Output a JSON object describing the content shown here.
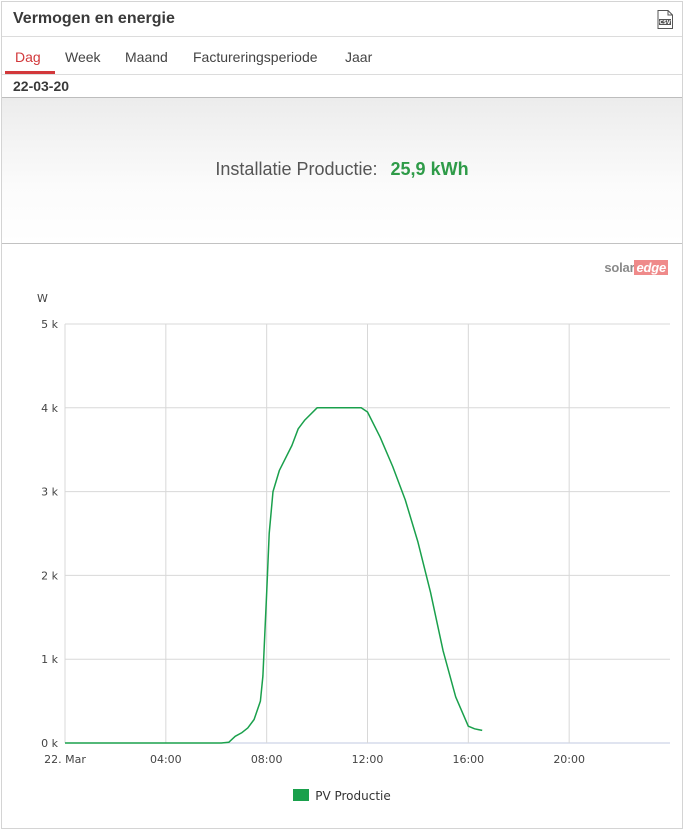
{
  "widget": {
    "title": "Vermogen en energie",
    "csv_icon": "csv-file-icon"
  },
  "tabs": [
    {
      "label": "Dag",
      "active": true
    },
    {
      "label": "Week",
      "active": false
    },
    {
      "label": "Maand",
      "active": false
    },
    {
      "label": "Factureringsperiode",
      "active": false
    },
    {
      "label": "Jaar",
      "active": false
    }
  ],
  "date": "22-03-20",
  "summary": {
    "label": "Installatie Productie:",
    "value": "25,9 kWh"
  },
  "logo": {
    "part1": "solar",
    "part2": "edge"
  },
  "colors": {
    "accent": "#d2383b",
    "value_green": "#2e9b48",
    "series": "#1aa04c",
    "grid": "#d8d8d8"
  },
  "chart_data": {
    "type": "line",
    "ylabel": "W",
    "ylim": [
      0,
      5000
    ],
    "yticks": [
      0,
      1000,
      2000,
      3000,
      4000,
      5000
    ],
    "ytick_labels": [
      "0 k",
      "1 k",
      "2 k",
      "3 k",
      "4 k",
      "5 k"
    ],
    "xlim": [
      0,
      24
    ],
    "xticks": [
      0,
      4,
      8,
      12,
      16,
      20
    ],
    "xtick_labels": [
      "22. Mar",
      "04:00",
      "08:00",
      "12:00",
      "16:00",
      "20:00"
    ],
    "grid": true,
    "legend": "bottom-center",
    "series": [
      {
        "name": "PV Productie",
        "x": [
          0,
          6.2,
          6.5,
          6.75,
          7.0,
          7.25,
          7.5,
          7.75,
          7.85,
          8.0,
          8.1,
          8.25,
          8.5,
          9.0,
          9.25,
          9.5,
          10.0,
          10.5,
          11.0,
          11.5,
          11.75,
          12.0,
          12.5,
          13.0,
          13.5,
          14.0,
          14.5,
          15.0,
          15.5,
          16.0,
          16.25,
          16.4,
          16.55
        ],
        "y": [
          0,
          0,
          10,
          80,
          120,
          180,
          280,
          500,
          800,
          1800,
          2500,
          3000,
          3250,
          3550,
          3750,
          3850,
          4000,
          4000,
          4000,
          4000,
          4000,
          3950,
          3650,
          3300,
          2900,
          2400,
          1800,
          1100,
          550,
          200,
          170,
          160,
          150
        ]
      }
    ]
  }
}
